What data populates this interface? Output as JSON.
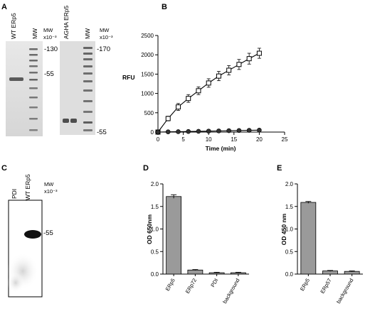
{
  "panels": {
    "A": {
      "letter": "A",
      "gel1": {
        "lanes": [
          "WT ERp5",
          "MW"
        ],
        "mw_label": [
          "MW",
          "x10⁻³"
        ],
        "markers": [
          "-130",
          "-55"
        ]
      },
      "gel2": {
        "lanes": [
          "AGHA ERp5",
          "MW"
        ],
        "mw_label": [
          "MW",
          "x10⁻³"
        ],
        "markers": [
          "-170",
          "-55"
        ]
      }
    },
    "B": {
      "letter": "B"
    },
    "C": {
      "letter": "C",
      "lanes": [
        "PDI",
        "WT ERp5"
      ],
      "mw_label": [
        "MW",
        "x10⁻³"
      ],
      "markers": [
        "-55"
      ]
    },
    "D": {
      "letter": "D"
    },
    "E": {
      "letter": "E"
    }
  },
  "chart_data": [
    {
      "panel": "B",
      "type": "line",
      "xlabel": "Time (min)",
      "ylabel": "RFU",
      "xlim": [
        0,
        25
      ],
      "ylim": [
        0,
        2500
      ],
      "xticks": [
        0,
        5,
        10,
        15,
        20,
        25
      ],
      "yticks": [
        0,
        500,
        1000,
        1500,
        2000,
        2500
      ],
      "grid": false,
      "series": [
        {
          "marker": "open-square",
          "x": [
            0,
            2,
            4,
            6,
            8,
            10,
            12,
            14,
            16,
            18,
            20
          ],
          "y": [
            0,
            350,
            650,
            870,
            1070,
            1270,
            1450,
            1600,
            1750,
            1900,
            2040
          ],
          "err": [
            20,
            60,
            90,
            100,
            100,
            110,
            120,
            120,
            130,
            140,
            130
          ]
        },
        {
          "marker": "filled-circle",
          "x": [
            0,
            2,
            4,
            6,
            8,
            10,
            12,
            14,
            16,
            18,
            20
          ],
          "y": [
            0,
            5,
            10,
            15,
            20,
            25,
            30,
            35,
            40,
            45,
            50
          ],
          "err": [
            5,
            5,
            5,
            5,
            5,
            5,
            5,
            5,
            5,
            5,
            5
          ]
        }
      ]
    },
    {
      "panel": "D",
      "type": "bar",
      "ylabel": "OD 650nm",
      "ylim": [
        0,
        2.0
      ],
      "yticks": [
        "0.0",
        "0.5",
        "1.0",
        "1.5",
        "2.0"
      ],
      "categories": [
        "ERp5",
        "ERp72",
        "PDI",
        "background"
      ],
      "values": [
        1.72,
        0.09,
        0.03,
        0.03
      ],
      "err": [
        0.04,
        0.01,
        0.01,
        0.01
      ]
    },
    {
      "panel": "E",
      "type": "bar",
      "ylabel": "OD 450 nm",
      "ylim": [
        0,
        2.0
      ],
      "yticks": [
        "0.0",
        "0.5",
        "1.0",
        "1.5",
        "2.0"
      ],
      "categories": [
        "ERp5",
        "ERp57",
        "background"
      ],
      "values": [
        1.59,
        0.07,
        0.06
      ],
      "err": [
        0.02,
        0.01,
        0.01
      ]
    }
  ]
}
